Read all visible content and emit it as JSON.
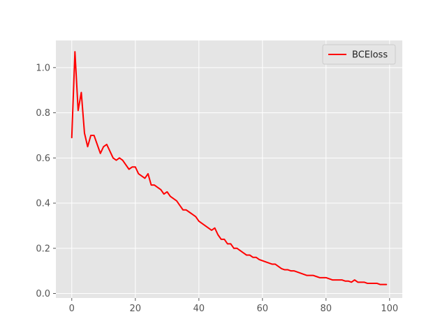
{
  "chart_data": {
    "type": "line",
    "title": "",
    "xlabel": "",
    "ylabel": "",
    "xlim": [
      -5,
      104
    ],
    "ylim": [
      -0.02,
      1.12
    ],
    "grid": true,
    "legend_position": "top-right",
    "xticks": [
      0,
      20,
      40,
      60,
      80,
      100
    ],
    "yticks": [
      0.0,
      0.2,
      0.4,
      0.6,
      0.8,
      1.0
    ],
    "xtick_labels": [
      "0",
      "20",
      "40",
      "60",
      "80",
      "100"
    ],
    "ytick_labels": [
      "0.0",
      "0.2",
      "0.4",
      "0.6",
      "0.8",
      "1.0"
    ],
    "series": [
      {
        "name": "BCEloss",
        "color": "#ff0000",
        "x": [
          0,
          1,
          2,
          3,
          4,
          5,
          6,
          7,
          8,
          9,
          10,
          11,
          12,
          13,
          14,
          15,
          16,
          17,
          18,
          19,
          20,
          21,
          22,
          23,
          24,
          25,
          26,
          27,
          28,
          29,
          30,
          31,
          32,
          33,
          34,
          35,
          36,
          37,
          38,
          39,
          40,
          41,
          42,
          43,
          44,
          45,
          46,
          47,
          48,
          49,
          50,
          51,
          52,
          53,
          54,
          55,
          56,
          57,
          58,
          59,
          60,
          61,
          62,
          63,
          64,
          65,
          66,
          67,
          68,
          69,
          70,
          71,
          72,
          73,
          74,
          75,
          76,
          77,
          78,
          79,
          80,
          81,
          82,
          83,
          84,
          85,
          86,
          87,
          88,
          89,
          90,
          91,
          92,
          93,
          94,
          95,
          96,
          97,
          98,
          99
        ],
        "values": [
          0.69,
          1.07,
          0.81,
          0.89,
          0.71,
          0.65,
          0.7,
          0.7,
          0.66,
          0.62,
          0.65,
          0.66,
          0.63,
          0.6,
          0.59,
          0.6,
          0.59,
          0.57,
          0.55,
          0.56,
          0.56,
          0.53,
          0.52,
          0.51,
          0.53,
          0.48,
          0.48,
          0.47,
          0.46,
          0.44,
          0.45,
          0.43,
          0.42,
          0.41,
          0.39,
          0.37,
          0.37,
          0.36,
          0.35,
          0.34,
          0.32,
          0.31,
          0.3,
          0.29,
          0.28,
          0.29,
          0.26,
          0.24,
          0.24,
          0.22,
          0.22,
          0.2,
          0.2,
          0.19,
          0.18,
          0.17,
          0.17,
          0.16,
          0.16,
          0.15,
          0.145,
          0.14,
          0.135,
          0.13,
          0.13,
          0.12,
          0.11,
          0.105,
          0.105,
          0.1,
          0.1,
          0.095,
          0.09,
          0.085,
          0.08,
          0.08,
          0.08,
          0.075,
          0.07,
          0.07,
          0.07,
          0.065,
          0.06,
          0.06,
          0.06,
          0.06,
          0.055,
          0.055,
          0.05,
          0.06,
          0.05,
          0.05,
          0.05,
          0.045,
          0.045,
          0.045,
          0.045,
          0.04,
          0.04,
          0.04
        ]
      }
    ]
  }
}
